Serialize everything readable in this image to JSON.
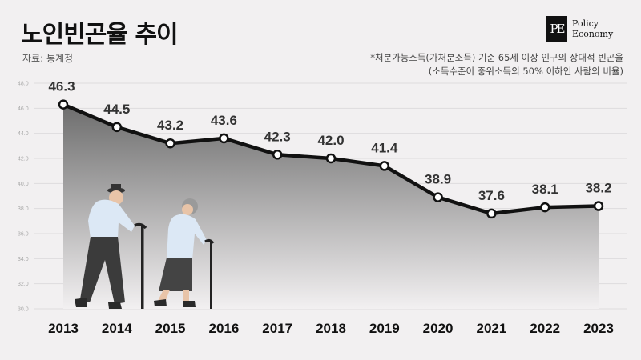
{
  "header": {
    "title": "노인빈곤율 추이",
    "source": "자료: 통계청",
    "note_line1": "*처분가능소득(가처분소득) 기준 65세 이상 인구의 상대적 빈곤율",
    "note_line2": "(소득수준이 중위소득의 50% 이하인 사람의 비율)"
  },
  "logo": {
    "mark": "PE",
    "line1": "Policy",
    "line2": "Economy"
  },
  "illustration": {
    "icon": "elderly-couple-with-canes-icon"
  },
  "colors": {
    "line": "#111111",
    "marker_fill": "#ffffff",
    "area_top": "#6d6d6d",
    "area_bottom": "#f2f0f1",
    "background": "#f2f0f1"
  },
  "chart_data": {
    "type": "line",
    "title": "노인빈곤율 추이",
    "x": [
      "2013",
      "2014",
      "2015",
      "2016",
      "2017",
      "2018",
      "2019",
      "2020",
      "2021",
      "2022",
      "2023"
    ],
    "values": [
      46.3,
      44.5,
      43.2,
      43.6,
      42.3,
      42.0,
      41.4,
      38.9,
      37.6,
      38.1,
      38.2
    ],
    "value_labels": [
      "46.3",
      "44.5",
      "43.2",
      "43.6",
      "42.3",
      "42.0",
      "41.4",
      "38.9",
      "37.6",
      "38.1",
      "38.2"
    ],
    "ylim": [
      30,
      48
    ],
    "yticks": [
      "30.0",
      "32.0",
      "34.0",
      "36.0",
      "38.0",
      "40.0",
      "42.0",
      "44.0",
      "46.0",
      "48.0"
    ],
    "grid": true,
    "legend": "none",
    "area_fill": true
  }
}
